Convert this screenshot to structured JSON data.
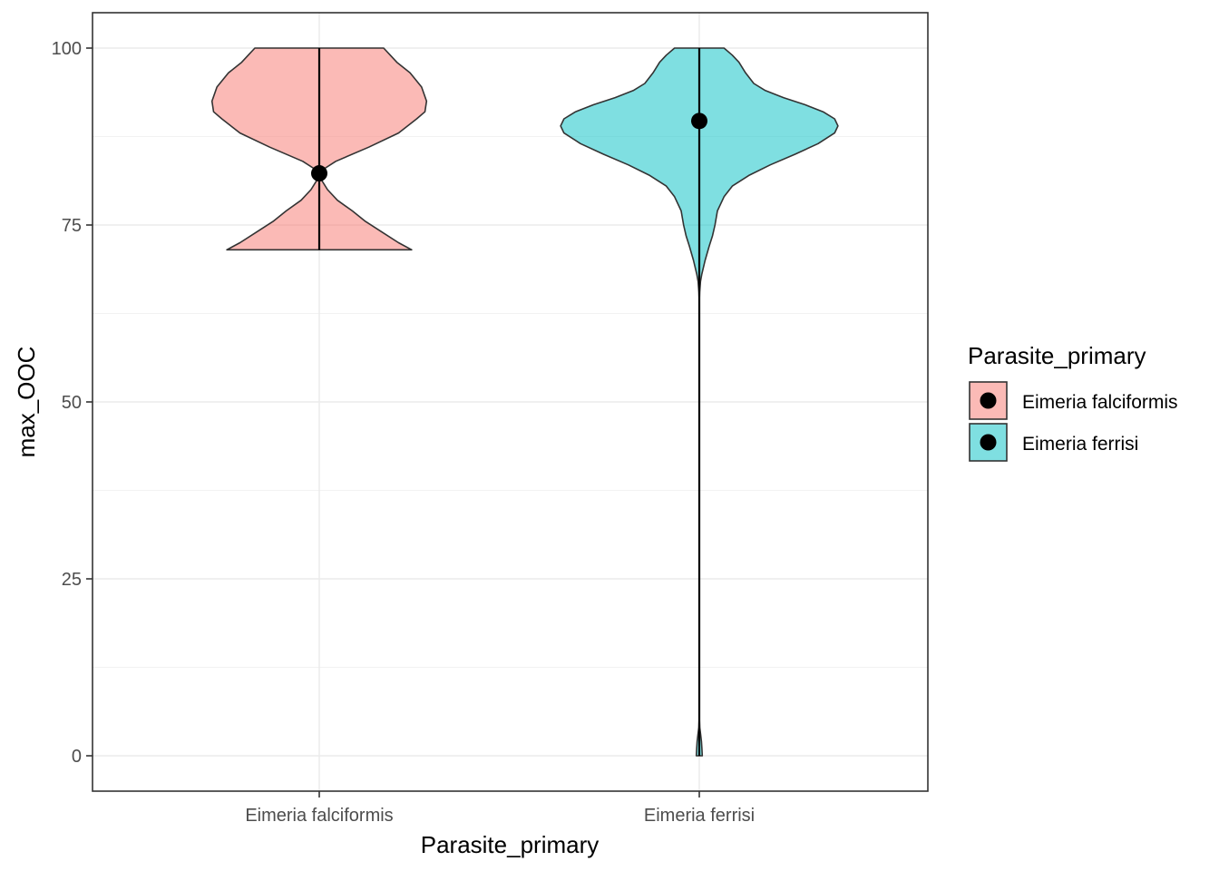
{
  "chart_data": {
    "type": "violin",
    "title": "",
    "xlabel": "Parasite_primary",
    "ylabel": "max_OOC",
    "ylim": [
      -5,
      105
    ],
    "yticks": [
      0,
      25,
      50,
      75,
      100
    ],
    "categories": [
      "Eimeria falciformis",
      "Eimeria ferrisi"
    ],
    "grid": true,
    "legend": {
      "title": "Parasite_primary",
      "placement": "right",
      "entries": [
        "Eimeria falciformis",
        "Eimeria ferrisi"
      ]
    },
    "series": [
      {
        "category": "Eimeria falciformis",
        "fill": "#F8766D",
        "range": [
          71.5,
          100
        ],
        "point": 82.3,
        "density": [
          [
            71.5,
            0.56
          ],
          [
            72.5,
            0.48
          ],
          [
            74,
            0.38
          ],
          [
            75.5,
            0.28
          ],
          [
            77,
            0.2
          ],
          [
            78.5,
            0.11
          ],
          [
            80,
            0.05
          ],
          [
            81.5,
            0.01
          ],
          [
            82.5,
            0.0
          ],
          [
            84,
            0.1
          ],
          [
            86,
            0.3
          ],
          [
            88,
            0.48
          ],
          [
            90,
            0.59
          ],
          [
            91,
            0.64
          ],
          [
            92.5,
            0.65
          ],
          [
            94.5,
            0.62
          ],
          [
            96.5,
            0.55
          ],
          [
            98,
            0.47
          ],
          [
            99,
            0.43
          ],
          [
            100,
            0.39
          ]
        ]
      },
      {
        "category": "Eimeria ferrisi",
        "fill": "#00BFC4",
        "range": [
          0,
          100
        ],
        "point": 89.7,
        "density": [
          [
            0,
            0.018
          ],
          [
            1,
            0.016
          ],
          [
            2,
            0.013
          ],
          [
            3,
            0.008
          ],
          [
            4,
            0.003
          ],
          [
            5,
            0.001
          ],
          [
            7,
            0.0
          ],
          [
            60,
            0.0
          ],
          [
            64,
            0.0
          ],
          [
            65.5,
            0.002
          ],
          [
            67,
            0.007
          ],
          [
            68,
            0.015
          ],
          [
            70,
            0.035
          ],
          [
            72,
            0.06
          ],
          [
            73.5,
            0.08
          ],
          [
            75,
            0.095
          ],
          [
            77,
            0.11
          ],
          [
            79,
            0.15
          ],
          [
            80.5,
            0.2
          ],
          [
            82,
            0.3
          ],
          [
            83.5,
            0.43
          ],
          [
            85,
            0.58
          ],
          [
            86.5,
            0.72
          ],
          [
            88,
            0.82
          ],
          [
            89,
            0.84
          ],
          [
            90,
            0.82
          ],
          [
            91,
            0.75
          ],
          [
            92,
            0.64
          ],
          [
            93,
            0.51
          ],
          [
            94,
            0.4
          ],
          [
            95,
            0.33
          ],
          [
            96.5,
            0.28
          ],
          [
            98,
            0.24
          ],
          [
            99,
            0.2
          ],
          [
            100,
            0.15
          ]
        ]
      }
    ]
  }
}
